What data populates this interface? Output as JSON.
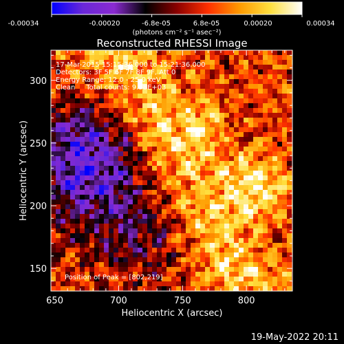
{
  "colorbar": {
    "tick_labels": [
      "-0.00034",
      "-0.00020",
      "-6.8e-05",
      "6.8e-05",
      "0.00020",
      "0.00034"
    ],
    "unit_label": "(photons cm⁻² s⁻¹ asec⁻²)",
    "range": [
      -0.00034,
      0.00034
    ],
    "colors": [
      "#0000ff",
      "#6a28d8",
      "#8a2ad0",
      "#000000",
      "#8a0000",
      "#ff3000",
      "#ff9a00",
      "#ffe040",
      "#ffffff"
    ]
  },
  "chart_data": {
    "type": "heatmap",
    "title": "Reconstructed RHESSI Image",
    "xlabel": "Heliocentric X (arcsec)",
    "ylabel": "Heliocentric Y (arcsec)",
    "xlim": [
      647,
      836
    ],
    "ylim": [
      132,
      324
    ],
    "x_ticks": [
      650,
      700,
      750,
      800
    ],
    "y_ticks": [
      150,
      200,
      250,
      300
    ],
    "annotations": [
      "17-Mar-2015 15:15:36.000 to 15:21:36.000",
      "Detectors: 3F 5F 6F 7F 8F 9F, Att 0",
      "Energy Range: 12.0 - 25.0 keV",
      "Clean     Total counts: 9.38E+03"
    ],
    "peak_label": "Position of Peak = [802,219]",
    "peak": [
      802,
      219
    ]
  },
  "footer": {
    "timestamp": "19-May-2022 20:11"
  }
}
